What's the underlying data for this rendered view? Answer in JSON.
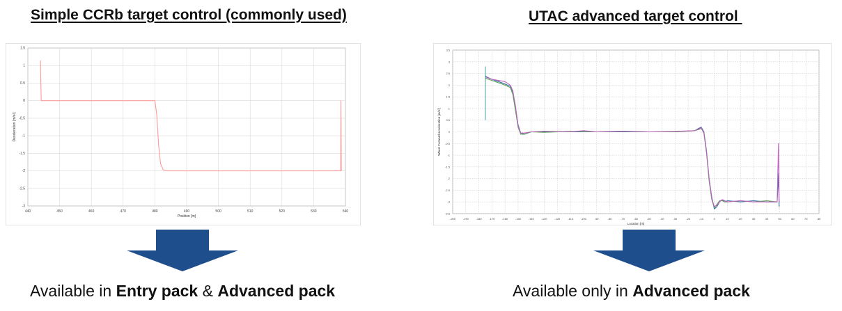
{
  "left_panel": {
    "title": "Simple CCRb target control (commonly used)",
    "availability_prefix": "Available in ",
    "availability_bold_1": "Entry pack",
    "availability_joiner": " & ",
    "availability_bold_2": "Advanced pack"
  },
  "right_panel": {
    "title": "UTAC advanced target control ",
    "availability_prefix": "Available only in ",
    "availability_bold_1": "Advanced pack"
  },
  "colors": {
    "arrow": "#1f4e8c",
    "grid": "#d9d9d9",
    "left_series": "#ff9a9a"
  },
  "chart_data": [
    {
      "type": "line",
      "xlabel": "Position [m]",
      "ylabel": "Deceleration [m/s²]",
      "xlim": [
        440,
        540
      ],
      "ylim": [
        -3,
        1.5
      ],
      "x_ticks": [
        "440",
        "450",
        "460",
        "470",
        "480",
        "490",
        "500",
        "510",
        "520",
        "530",
        "540"
      ],
      "y_ticks": [
        "1.5",
        "1",
        "0.5",
        "0",
        "-0.5",
        "-1",
        "-1.5",
        "-2",
        "-2.5",
        "-3"
      ],
      "grid": true,
      "series": [
        {
          "x": [
            444,
            444,
            444.2,
            480.0,
            480.6,
            481.2,
            481.8,
            482.6,
            484.0,
            538.5,
            538.6,
            538.7
          ],
          "y": [
            1.15,
            0.9,
            0,
            0,
            -0.4,
            -1.3,
            -1.8,
            -1.97,
            -2.0,
            -2.0,
            0.0,
            -2.0
          ]
        }
      ]
    },
    {
      "type": "line",
      "xlabel": "Location [m]",
      "ylabel": "Wheel Forward acceleration [m/s²]",
      "xlim": [
        -200,
        80
      ],
      "ylim": [
        -3.5,
        3.5
      ],
      "x_ticks": [
        "-200",
        "-190",
        "-180",
        "-170",
        "-160",
        "-150",
        "-140",
        "-130",
        "-120",
        "-110",
        "-100",
        "-90",
        "-80",
        "-70",
        "-60",
        "-50",
        "-40",
        "-30",
        "-20",
        "-10",
        "0",
        "10",
        "20",
        "30",
        "40",
        "50",
        "60",
        "70",
        "80"
      ],
      "y_ticks": [
        "3.5",
        "3",
        "2.5",
        "2",
        "1.5",
        "1",
        "0.5",
        "0",
        "-0.5",
        "-1",
        "-1.5",
        "-2",
        "-2.5",
        "-3",
        "-3.5"
      ],
      "grid": true,
      "series": [
        {
          "color": "#2f6f9f",
          "x": [
            -175,
            -174,
            -170,
            -165,
            -160,
            -156,
            -154,
            -152,
            -150,
            -148,
            -145,
            -140,
            -130,
            -110,
            -90,
            -70,
            -50,
            -30,
            -15,
            -12,
            -10,
            -8,
            -6,
            -4,
            -2,
            0,
            2,
            4,
            6,
            8,
            10,
            20,
            30,
            40,
            48,
            49,
            49.5
          ],
          "y": [
            2.4,
            2.35,
            2.25,
            2.15,
            2.05,
            1.95,
            1.7,
            1.0,
            0.3,
            -0.05,
            -0.1,
            0.0,
            0.0,
            0.0,
            0.0,
            0.0,
            0.0,
            0.0,
            0.05,
            0.15,
            0.2,
            0.0,
            -0.8,
            -2.0,
            -2.8,
            -3.3,
            -3.2,
            -3.0,
            -2.9,
            -3.0,
            -2.95,
            -3.0,
            -2.95,
            -3.0,
            -3.0,
            -1.8,
            -3.2
          ]
        },
        {
          "color": "#5aa055",
          "x": [
            -175,
            -170,
            -165,
            -160,
            -156,
            -154,
            -152,
            -150,
            -148,
            -145,
            -140,
            -130,
            -110,
            -90,
            -70,
            -50,
            -30,
            -15,
            -12,
            -10,
            -8,
            -6,
            -4,
            -2,
            0,
            2,
            4,
            6,
            8,
            10,
            20,
            30,
            40,
            48
          ],
          "y": [
            2.3,
            2.2,
            2.1,
            2.0,
            1.9,
            1.6,
            0.9,
            0.2,
            -0.1,
            -0.1,
            0.0,
            -0.02,
            0.02,
            0.0,
            0.02,
            0.0,
            0.0,
            0.05,
            0.1,
            0.15,
            -0.05,
            -0.9,
            -2.1,
            -2.9,
            -3.25,
            -3.1,
            -2.95,
            -2.95,
            -3.0,
            -3.0,
            -2.95,
            -3.0,
            -2.95,
            -3.0
          ]
        },
        {
          "color": "#c060c0",
          "x": [
            -175,
            -170,
            -165,
            -160,
            -156,
            -154,
            -152,
            -150,
            -148,
            -145,
            -140,
            -130,
            -110,
            -100,
            -90,
            -70,
            -50,
            -30,
            -15,
            -12,
            -10,
            -8,
            -6,
            -4,
            -2,
            0,
            2,
            4,
            6,
            8,
            10,
            20,
            30,
            40,
            48,
            49,
            49.5
          ],
          "y": [
            2.35,
            2.25,
            2.2,
            2.15,
            2.0,
            1.75,
            1.1,
            0.25,
            -0.05,
            -0.05,
            0.0,
            0.03,
            0.0,
            0.05,
            0.0,
            0.03,
            0.0,
            0.02,
            0.05,
            0.12,
            0.18,
            -0.05,
            -0.85,
            -2.0,
            -2.85,
            -3.2,
            -3.15,
            -3.0,
            -2.9,
            -2.95,
            -3.0,
            -2.95,
            -3.0,
            -3.0,
            -3.0,
            -0.5,
            -3.0
          ]
        }
      ],
      "spike": {
        "x": 0,
        "y_from": 0.5,
        "y_to": 2.8,
        "at_x": -175,
        "color": "#4aa0a0"
      }
    }
  ]
}
